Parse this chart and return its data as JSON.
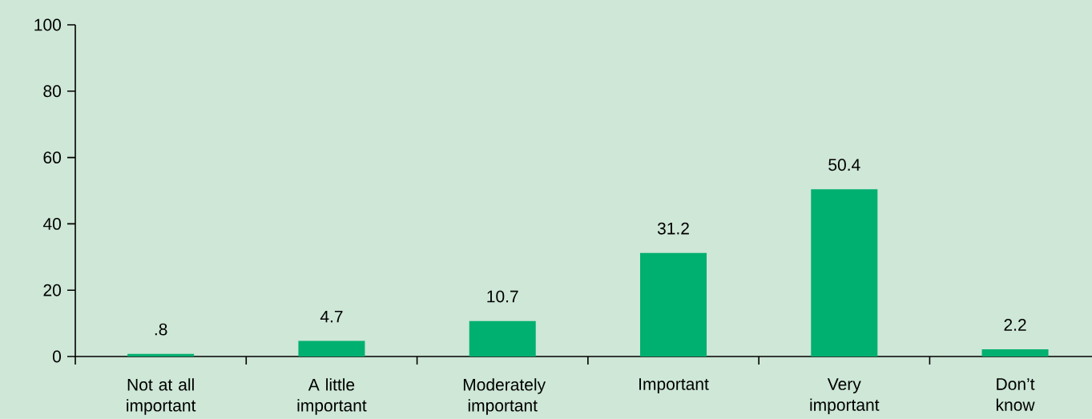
{
  "chart_data": {
    "type": "bar",
    "categories": [
      "Not at all important",
      "A little important",
      "Moderately important",
      "Important",
      "Very important",
      "Don’t know"
    ],
    "values": [
      0.8,
      4.7,
      10.7,
      31.2,
      50.4,
      2.2
    ],
    "value_labels": [
      ".8",
      "4.7",
      "10.7",
      "31.2",
      "50.4",
      "2.2"
    ],
    "color": "#00b070",
    "ylim": [
      0,
      100
    ],
    "yticks": [
      0,
      20,
      40,
      60,
      80,
      100
    ]
  }
}
